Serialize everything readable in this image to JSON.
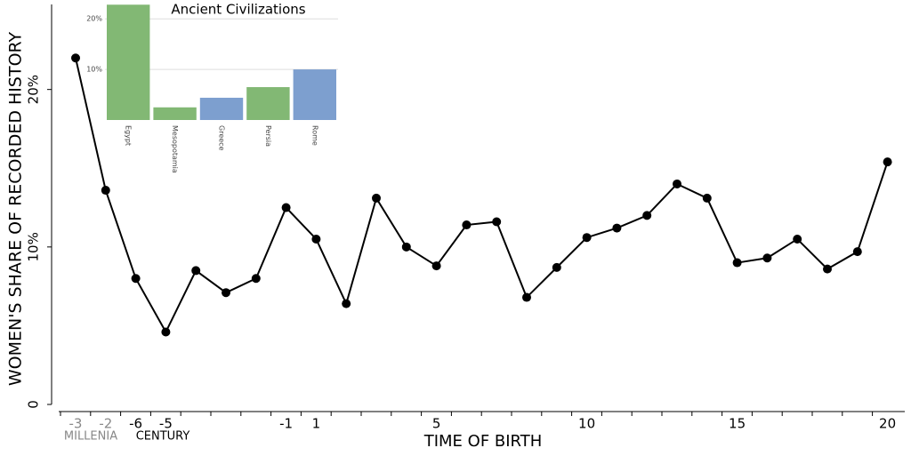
{
  "chart_data": [
    {
      "type": "line",
      "y_label": "WOMEN'S SHARE OF RECORDED HISTORY",
      "x_label": "TIME OF BIRTH",
      "categories": [
        "-3",
        "-2",
        "-6",
        "-5",
        null,
        null,
        null,
        "-1",
        "1",
        null,
        null,
        null,
        "5",
        null,
        null,
        null,
        null,
        "10",
        null,
        null,
        null,
        null,
        "15",
        null,
        null,
        null,
        null,
        "20"
      ],
      "category_colors": [
        "#888888",
        "#888888",
        "#000000",
        "#000000",
        "#000000",
        "#000000",
        "#000000",
        "#000000",
        "#000000",
        "#000000",
        "#000000",
        "#000000",
        "#000000",
        "#000000",
        "#000000",
        "#000000",
        "#000000",
        "#000000",
        "#000000",
        "#000000",
        "#000000",
        "#000000",
        "#000000",
        "#000000",
        "#000000",
        "#000000",
        "#000000",
        "#000000"
      ],
      "annotations": [
        {
          "text": "MILLENIA",
          "color": "#888888"
        },
        {
          "text": "CENTURY",
          "color": "#000000"
        }
      ],
      "series": [
        {
          "color": "#000000",
          "values": [
            22.0,
            13.6,
            8.0,
            4.6,
            8.5,
            7.1,
            8.0,
            12.5,
            10.5,
            6.4,
            13.1,
            10.0,
            8.8,
            11.4,
            11.6,
            6.8,
            8.7,
            10.6,
            11.2,
            12.0,
            14.0,
            13.1,
            9.0,
            9.3,
            10.5,
            8.6,
            9.7,
            15.4
          ]
        }
      ],
      "ylim": [
        0,
        25.4
      ],
      "yticks": [
        0,
        {
          "value": 10,
          "label": "10%"
        },
        {
          "value": 20,
          "label": "20%"
        }
      ]
    },
    {
      "type": "bar",
      "title": "Ancient Civilizations",
      "categories": [
        "Egypt",
        "Mesopotamia",
        "Greece",
        "Persia",
        "Rome"
      ],
      "values": [
        22.8,
        2.5,
        4.4,
        6.5,
        10.0
      ],
      "colors": [
        "#82b874",
        "#82b874",
        "#7d9fcf",
        "#82b874",
        "#7d9fcf"
      ],
      "ylim": [
        0,
        23.2
      ],
      "yticks": [
        {
          "value": 10,
          "label": "10%"
        },
        {
          "value": 20,
          "label": "20%"
        }
      ],
      "grid": true
    }
  ]
}
